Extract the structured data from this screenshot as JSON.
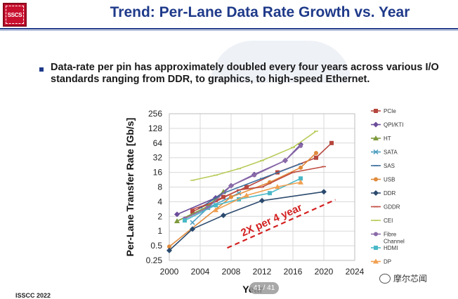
{
  "slide": {
    "logo_text": "SSCS",
    "title": "Trend: Per-Lane Data Rate Growth vs. Year",
    "bullet": "Data-rate per pin has approximately doubled every four years across various I/O standards ranging from DDR, to graphics, to high-speed Ethernet.",
    "footer": "ISSCC 2022",
    "page_indicator": "41 / 41",
    "wechat_label": "摩尔芯闻"
  },
  "chart_data": {
    "type": "line",
    "title": "",
    "xlabel": "Year",
    "ylabel": "Per-Lane Transfer Rate [Gb/s]",
    "y_scale": "log2",
    "xlim": [
      2000,
      2024
    ],
    "ylim": [
      0.25,
      256
    ],
    "x_ticks": [
      2000,
      2004,
      2008,
      2012,
      2016,
      2020,
      2024
    ],
    "x_tick_labels": [
      "2000",
      "2004",
      "2008",
      "2012",
      "2016",
      "2020",
      "2024"
    ],
    "y_ticks": [
      0.25,
      0.5,
      1,
      2,
      4,
      8,
      16,
      32,
      64,
      128,
      256
    ],
    "y_tick_labels": [
      "0.25",
      "0.5",
      "1",
      "2",
      "4",
      "8",
      "16",
      "32",
      "64",
      "128",
      "256"
    ],
    "annotation": {
      "text": "2X per 4 year",
      "color": "#d42020"
    },
    "trend_line": {
      "x": [
        2007.5,
        2021.5
      ],
      "y": [
        0.45,
        4.4
      ]
    },
    "series": [
      {
        "name": "PCIe",
        "color": "#b5463d",
        "marker": "square",
        "x": [
          2003,
          2007,
          2010,
          2014,
          2019,
          2021
        ],
        "y": [
          2.5,
          5,
          8,
          16,
          32,
          64
        ]
      },
      {
        "name": "QPI/KTI",
        "color": "#6b4c9a",
        "marker": "diamond",
        "x": [
          2001,
          2006,
          2008,
          2011,
          2015,
          2017
        ],
        "y": [
          2.2,
          4.8,
          8.5,
          14.5,
          28,
          60
        ]
      },
      {
        "name": "HT",
        "color": "#7d9a3c",
        "marker": "triangle",
        "x": [
          2001,
          2005,
          2007
        ],
        "y": [
          1.6,
          3.2,
          6.4
        ]
      },
      {
        "name": "SATA",
        "color": "#4a9cc0",
        "marker": "x",
        "x": [
          2003,
          2005,
          2009
        ],
        "y": [
          1.5,
          3,
          6
        ]
      },
      {
        "name": "SAS",
        "color": "#3a6e9e",
        "marker": "line",
        "x": [
          2004,
          2007,
          2012,
          2017
        ],
        "y": [
          3,
          6,
          12,
          24
        ]
      },
      {
        "name": "USB",
        "color": "#e08a3a",
        "marker": "circle",
        "x": [
          2000,
          2008,
          2013,
          2017,
          2019
        ],
        "y": [
          0.48,
          5,
          10,
          20,
          40
        ]
      },
      {
        "name": "DDR",
        "color": "#2b4a6e",
        "marker": "diamond",
        "x": [
          2000,
          2003,
          2007,
          2012,
          2020
        ],
        "y": [
          0.4,
          1.1,
          2.1,
          4.2,
          6.4
        ]
      },
      {
        "name": "GDDR",
        "color": "#c04a40",
        "marker": "line",
        "x": [
          2003,
          2006,
          2009,
          2012,
          2016,
          2020
        ],
        "y": [
          2.8,
          4,
          7,
          8,
          16,
          21
        ]
      },
      {
        "name": "CEI",
        "color": "#b8cc5a",
        "marker": "line",
        "x": [
          2003,
          2006,
          2009,
          2012,
          2016,
          2019
        ],
        "y": [
          11,
          14,
          19,
          28,
          52,
          112
        ]
      },
      {
        "name": "Fibre Channel",
        "color": "#8a6aa8",
        "marker": "circle",
        "x": [
          2002,
          2005,
          2008,
          2011,
          2015,
          2017
        ],
        "y": [
          1.8,
          3,
          8.5,
          14,
          28,
          56
        ]
      },
      {
        "name": "HDMI",
        "color": "#4ab8c8",
        "marker": "square",
        "x": [
          2002,
          2006,
          2009,
          2013,
          2017
        ],
        "y": [
          1.65,
          3.4,
          4.5,
          6,
          12
        ]
      },
      {
        "name": "DP",
        "color": "#f0a050",
        "marker": "triangle",
        "x": [
          2006,
          2010,
          2014,
          2017
        ],
        "y": [
          2.7,
          5.4,
          8.1,
          10
        ]
      }
    ]
  }
}
